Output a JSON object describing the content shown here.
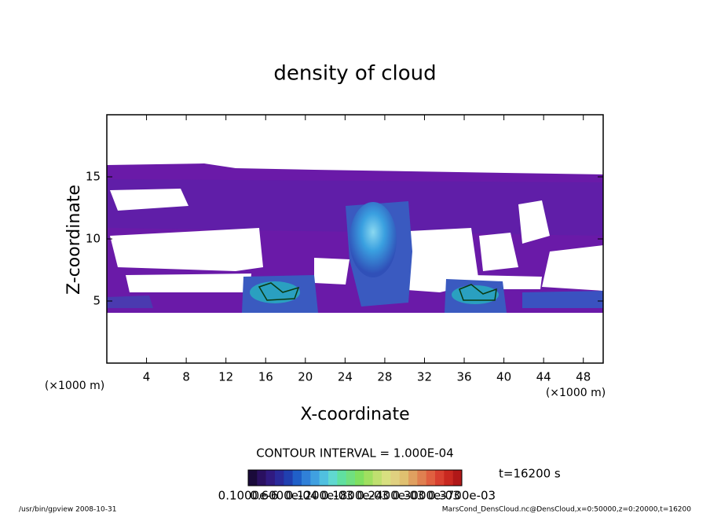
{
  "chart_data": {
    "type": "contour",
    "title": "density of cloud",
    "xlabel": "X-coordinate",
    "ylabel": "Z-coordinate",
    "xunit": "(×1000 m)",
    "xunit2": "(×1000 m)",
    "xlim": [
      0,
      50
    ],
    "xticks": [
      4,
      8,
      12,
      16,
      20,
      24,
      28,
      32,
      36,
      40,
      44,
      48
    ],
    "ylim": [
      0,
      20
    ],
    "yticks": [
      5,
      10,
      15
    ],
    "contour_interval": "CONTOUR INTERVAL = 1.000E-04",
    "time": "t=16200 s",
    "colorbar": {
      "colors": [
        "#1a0a3a",
        "#2a1060",
        "#301a80",
        "#2a2a9a",
        "#2040b0",
        "#2060c8",
        "#3080d8",
        "#40a0e0",
        "#50c0e0",
        "#60d8d0",
        "#60e0a0",
        "#70e080",
        "#80e060",
        "#a0e060",
        "#c0e070",
        "#d8e080",
        "#e0d080",
        "#e0c070",
        "#e0a060",
        "#e08050",
        "#e06040",
        "#d84030",
        "#c82820",
        "#b01818"
      ],
      "labels": [
        "0.1000e-6",
        "0.6000e-04",
        "0.1200e-03",
        "0.1800e-03",
        "0.2400e-03",
        "0.3000e-03",
        "0.3700e-03"
      ]
    },
    "footer_left": "/usr/bin/gpview  2008-10-31",
    "footer_right": "MarsCond_DensCloud.nc@DensCloud,x=0:50000,z=0:20000,t=16200"
  }
}
